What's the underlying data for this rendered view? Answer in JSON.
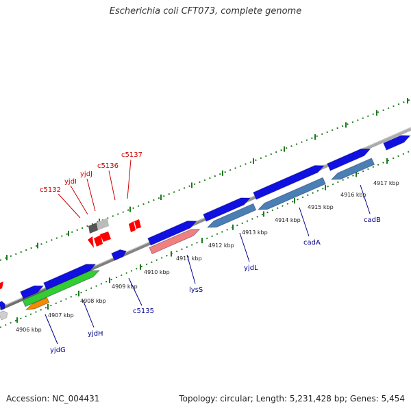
{
  "title": "Escherichia coli CFT073, complete genome",
  "footer": {
    "accession": "Accession: NC_004431",
    "topology": "Topology: circular;",
    "length": "Length: 5,231,428 bp;",
    "genes": "Genes: 5,454"
  },
  "ticks": [
    {
      "label": "4906 kbp"
    },
    {
      "label": "4907 kbp"
    },
    {
      "label": "4908 kbp"
    },
    {
      "label": "4909 kbp"
    },
    {
      "label": "4910 kbp"
    },
    {
      "label": "4911 kbp"
    },
    {
      "label": "4912 kbp"
    },
    {
      "label": "4913 kbp"
    },
    {
      "label": "4914 kbp"
    },
    {
      "label": "4915 kbp"
    },
    {
      "label": "4916 kbp"
    },
    {
      "label": "4917 kbp"
    }
  ],
  "genes_top": [
    {
      "name": "c5132"
    },
    {
      "name": "yjdI"
    },
    {
      "name": "yjdJ"
    },
    {
      "name": "c5136"
    },
    {
      "name": "c5137"
    }
  ],
  "genes_bottom": [
    {
      "name": "yjdG"
    },
    {
      "name": "yjdH"
    },
    {
      "name": "c5135"
    },
    {
      "name": "lysS"
    },
    {
      "name": "yjdL"
    },
    {
      "name": "cadA"
    },
    {
      "name": "cadB"
    }
  ],
  "colors": {
    "forward_gene": "#1010e0",
    "operon": "#4a7fb5",
    "lysS": "#f08080",
    "green_gene": "#33cc33",
    "orange_gene": "#f08c00",
    "red_gene": "#ff0000",
    "top_label": "#cc0000",
    "bottom_label": "#00008b",
    "backbone": "#888888",
    "tick_mark": "#1a7a1a"
  }
}
